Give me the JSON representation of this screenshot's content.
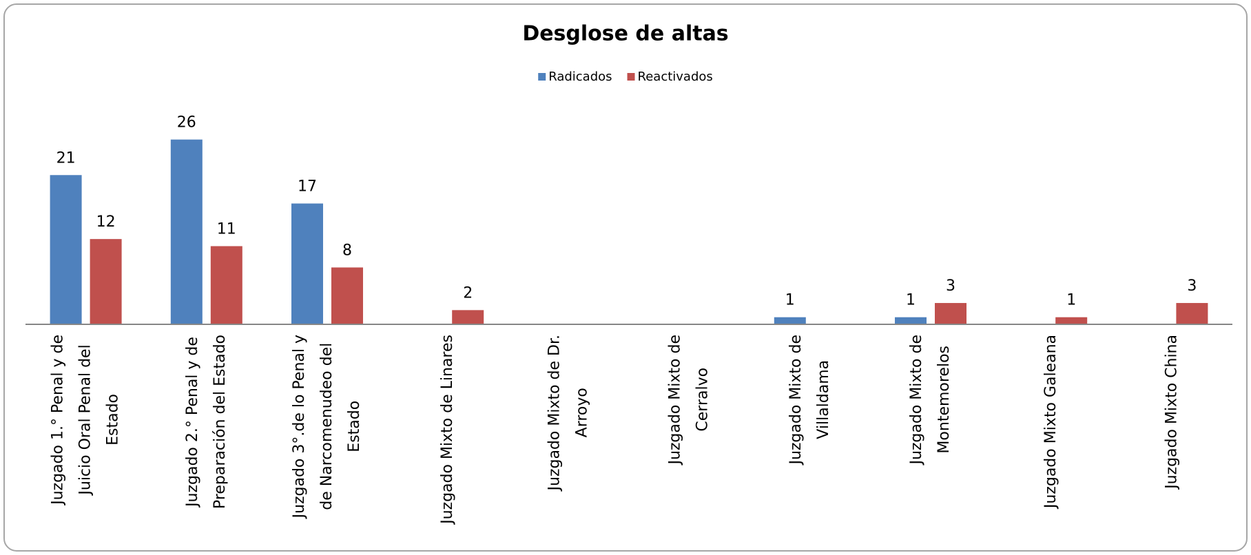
{
  "chart_data": {
    "type": "bar",
    "title": "Desglose de altas",
    "categories": [
      "Juzgado 1.° Penal y de\nJuicio Oral Penal del\nEstado",
      "Juzgado 2.° Penal y de\nPreparación del Estado",
      "Juzgado 3°.de lo Penal y\nde Narcomenudeo del\nEstado",
      "Juzgado Mixto de Linares",
      "Juzgado Mixto de  Dr.\nArroyo",
      "Juzgado Mixto de\nCerralvo",
      "Juzgado Mixto de\nVillaldama",
      "Juzgado Mixto de\nMontemorelos",
      "Juzgado Mixto Galeana",
      "Juzgado Mixto China"
    ],
    "series": [
      {
        "name": "Radicados",
        "color": "#4f81bd",
        "values": [
          21,
          26,
          17,
          null,
          null,
          null,
          1,
          1,
          null,
          null
        ]
      },
      {
        "name": "Reactivados",
        "color": "#c0504d",
        "values": [
          12,
          11,
          8,
          2,
          null,
          null,
          null,
          3,
          1,
          3
        ]
      }
    ],
    "ylim": [
      0,
      28
    ],
    "legend": "top"
  }
}
